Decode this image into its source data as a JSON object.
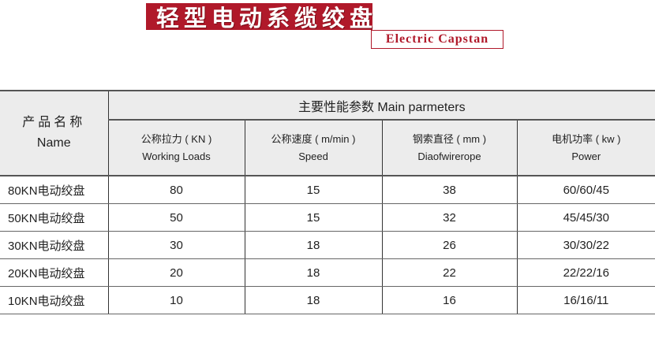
{
  "title": {
    "chinese": "轻型电动系缆绞盘",
    "english": "Electric Capstan"
  },
  "table": {
    "name_header": {
      "cn": "产品名称",
      "en": "Name"
    },
    "group_header": "主要性能参数  Main parmeters",
    "columns": [
      {
        "cn": "公称拉力 ( KN )",
        "en": "Working Loads"
      },
      {
        "cn": "公称速度 ( m/min )",
        "en": "Speed"
      },
      {
        "cn": "钢索直径 ( mm )",
        "en": "Diaofwirerope"
      },
      {
        "cn": "电机功率 ( kw )",
        "en": "Power"
      }
    ],
    "rows": [
      [
        "80KN电动绞盘",
        "80",
        "15",
        "38",
        "60/60/45"
      ],
      [
        "50KN电动绞盘",
        "50",
        "15",
        "32",
        "45/45/30"
      ],
      [
        "30KN电动绞盘",
        "30",
        "18",
        "26",
        "30/30/22"
      ],
      [
        "20KN电动绞盘",
        "20",
        "18",
        "22",
        "22/22/16"
      ],
      [
        "10KN电动绞盘",
        "10",
        "18",
        "16",
        "16/16/11"
      ]
    ]
  },
  "colors": {
    "brand_red": "#b0192a",
    "header_bg": "#ececec"
  }
}
